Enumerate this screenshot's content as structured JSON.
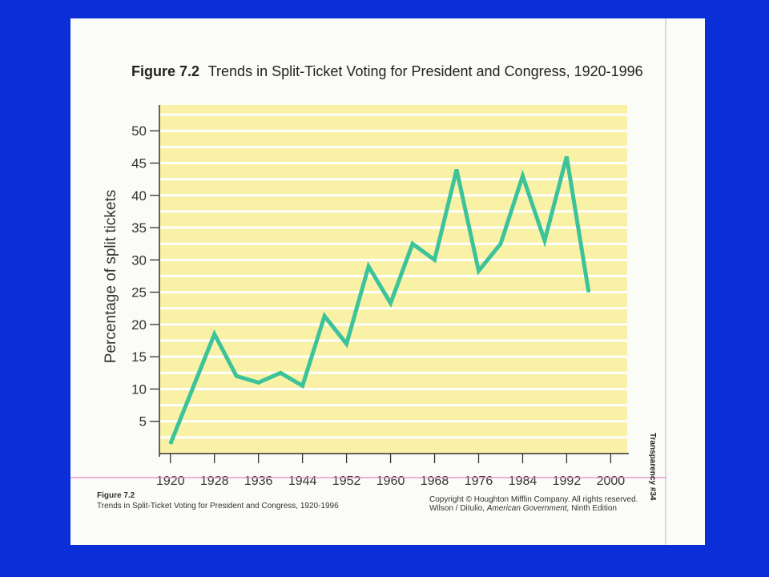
{
  "figure": {
    "number": "Figure 7.2",
    "title": "Trends in Split-Ticket Voting for President and Congress, 1920-1996"
  },
  "caption": {
    "number": "Figure 7.2",
    "text": "Trends in Split-Ticket Voting for President and Congress, 1920-1996"
  },
  "copyright": {
    "line1": "Copyright © Houghton Mifflin Company. All rights reserved.",
    "authors": "Wilson / DiIulio,",
    "book": "American Government,",
    "edition": "Ninth Edition"
  },
  "transparency_label": "Transparency #34",
  "colors": {
    "background": "#0a2fd6",
    "plot_fill": "#f8f1a6",
    "gridline": "#ffffff",
    "line": "#3cc39a",
    "rule": "#e28ac8"
  },
  "chart_data": {
    "type": "line",
    "title": "Trends in Split-Ticket Voting for President and Congress, 1920-1996",
    "xlabel": "",
    "ylabel": "Percentage of split tickets",
    "xlim": [
      1918,
      2003
    ],
    "ylim": [
      0,
      54
    ],
    "yticks": [
      5,
      10,
      15,
      20,
      25,
      30,
      35,
      40,
      45,
      50
    ],
    "xticks": [
      1920,
      1928,
      1936,
      1944,
      1952,
      1960,
      1968,
      1976,
      1984,
      1992,
      2000
    ],
    "grid": true,
    "legend": "none",
    "series": [
      {
        "x": [
          1920,
          1928,
          1932,
          1936,
          1940,
          1944,
          1948,
          1952,
          1956,
          1960,
          1964,
          1968,
          1972,
          1976,
          1980,
          1984,
          1988,
          1992,
          1996
        ],
        "y": [
          1.5,
          18.5,
          12,
          11,
          12.5,
          10.5,
          21.3,
          17,
          29,
          23.3,
          32.5,
          30,
          44,
          28.3,
          32.5,
          43,
          33,
          46,
          25
        ]
      }
    ]
  }
}
